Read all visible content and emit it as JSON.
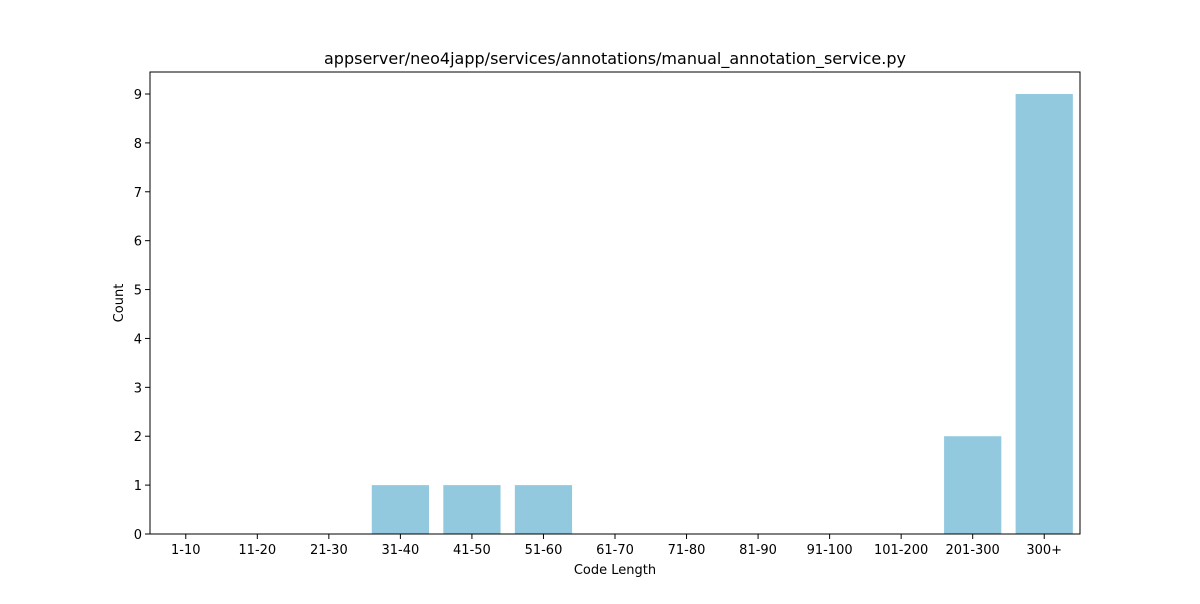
{
  "chart_data": {
    "type": "bar",
    "title": "appserver/neo4japp/services/annotations/manual_annotation_service.py",
    "xlabel": "Code Length",
    "ylabel": "Count",
    "categories": [
      "1-10",
      "11-20",
      "21-30",
      "31-40",
      "41-50",
      "51-60",
      "61-70",
      "71-80",
      "81-90",
      "91-100",
      "101-200",
      "201-300",
      "300+"
    ],
    "values": [
      0,
      0,
      0,
      1,
      1,
      1,
      0,
      0,
      0,
      0,
      0,
      2,
      9
    ],
    "yticks": [
      0,
      1,
      2,
      3,
      4,
      5,
      6,
      7,
      8,
      9
    ],
    "ylim": [
      0,
      9.45
    ],
    "grid": false,
    "bar_color": "#92c9df"
  }
}
